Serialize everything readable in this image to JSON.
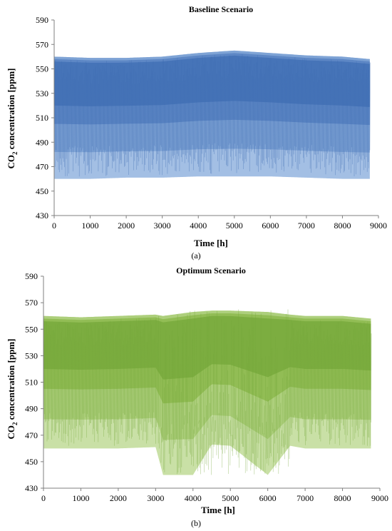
{
  "chart_data": [
    {
      "type": "area",
      "title": "Baseline Scenario",
      "xlabel": "Time [h]",
      "ylabel_main": "CO",
      "ylabel_sub": "2",
      "ylabel_rest": " concentration [ppm]",
      "caption": "(a)",
      "xlim": [
        0,
        9000
      ],
      "ylim": [
        430,
        590
      ],
      "xticks": [
        "0",
        "1000",
        "2000",
        "3000",
        "4000",
        "5000",
        "6000",
        "7000",
        "8000",
        "9000"
      ],
      "yticks": [
        "430",
        "450",
        "470",
        "490",
        "510",
        "530",
        "550",
        "570",
        "590"
      ],
      "grid": false,
      "colors": [
        "#3f6eb3",
        "#5783c2",
        "#7aa0d3",
        "#a3bfe4"
      ],
      "series": [
        {
          "x": [
            0,
            1000,
            2000,
            3000,
            4000,
            5000,
            6000,
            7000,
            8000,
            8760
          ],
          "upper": [
            560,
            559,
            559,
            560,
            563,
            565,
            563,
            561,
            560,
            558
          ],
          "lower": [
            460,
            460,
            461,
            461,
            462,
            462,
            462,
            461,
            460,
            460
          ]
        }
      ]
    },
    {
      "type": "area",
      "title": "Optimum Scenario",
      "xlabel": "Time [h]",
      "ylabel_main": "CO",
      "ylabel_sub": "2",
      "ylabel_rest": " concentration [ppm]",
      "caption": "(b)",
      "xlim": [
        0,
        9000
      ],
      "ylim": [
        430,
        590
      ],
      "xticks": [
        "0",
        "1000",
        "2000",
        "3000",
        "4000",
        "5000",
        "6000",
        "7000",
        "8000",
        "9000"
      ],
      "yticks": [
        "430",
        "450",
        "470",
        "490",
        "510",
        "530",
        "550",
        "570",
        "590"
      ],
      "grid": false,
      "colors": [
        "#74a83a",
        "#8dba4f",
        "#aacd78",
        "#c9e0a6"
      ],
      "series": [
        {
          "x": [
            0,
            1000,
            2000,
            3000,
            3200,
            4000,
            4500,
            5000,
            6000,
            6600,
            7000,
            8000,
            8760
          ],
          "upper": [
            560,
            559,
            560,
            561,
            560,
            563,
            564,
            564,
            563,
            561,
            560,
            560,
            558
          ],
          "lower": [
            460,
            460,
            460,
            461,
            440,
            440,
            463,
            462,
            440,
            462,
            460,
            460,
            460
          ]
        }
      ]
    }
  ]
}
